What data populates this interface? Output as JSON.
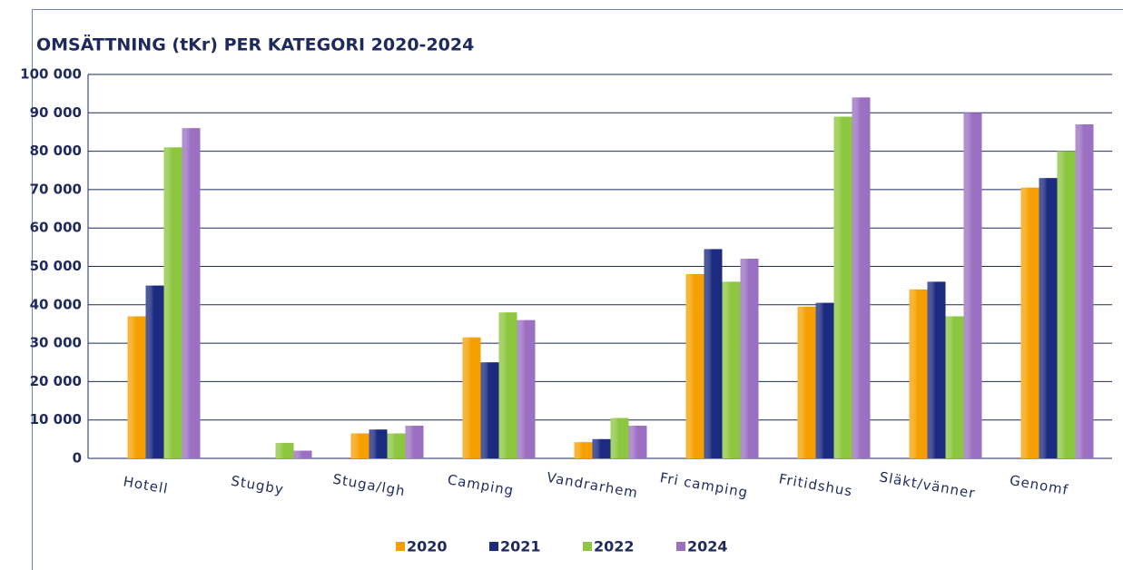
{
  "chart_data": {
    "type": "bar",
    "title": "OMSÄTTNING (tKr) PER KATEGORI 2020-2024",
    "categories": [
      "Hotell",
      "Stugby",
      "Stuga/lgh",
      "Camping",
      "Vandrarhem",
      "Fri camping",
      "Fritidshus",
      "Släkt/vänner",
      "Genomf"
    ],
    "series": [
      {
        "name": "2020",
        "color": "#f5a000",
        "values": [
          37000,
          0,
          6500,
          31500,
          4200,
          48000,
          39500,
          44000,
          70500
        ]
      },
      {
        "name": "2021",
        "color": "#1c2a80",
        "values": [
          45000,
          0,
          7500,
          25000,
          5000,
          54500,
          40500,
          46000,
          73000
        ]
      },
      {
        "name": "2022",
        "color": "#8dc63f",
        "values": [
          81000,
          4000,
          6500,
          38000,
          10500,
          46000,
          89000,
          37000,
          80000
        ]
      },
      {
        "name": "2024",
        "color": "#9b70c2",
        "values": [
          86000,
          2000,
          8500,
          36000,
          8500,
          52000,
          94000,
          90000,
          87000
        ]
      }
    ],
    "ylim": [
      0,
      100000
    ],
    "yticks": [
      {
        "value": 0,
        "label": "0"
      },
      {
        "value": 10000,
        "label": "10 000"
      },
      {
        "value": 20000,
        "label": "20 000"
      },
      {
        "value": 30000,
        "label": "30 000"
      },
      {
        "value": 40000,
        "label": "40 000"
      },
      {
        "value": 50000,
        "label": "50 000"
      },
      {
        "value": 60000,
        "label": "60 000"
      },
      {
        "value": 70000,
        "label": "70 000"
      },
      {
        "value": 80000,
        "label": "80 000"
      },
      {
        "value": 90000,
        "label": "90 000"
      },
      {
        "value": 100000,
        "label": "100 000"
      }
    ],
    "grid": true
  }
}
